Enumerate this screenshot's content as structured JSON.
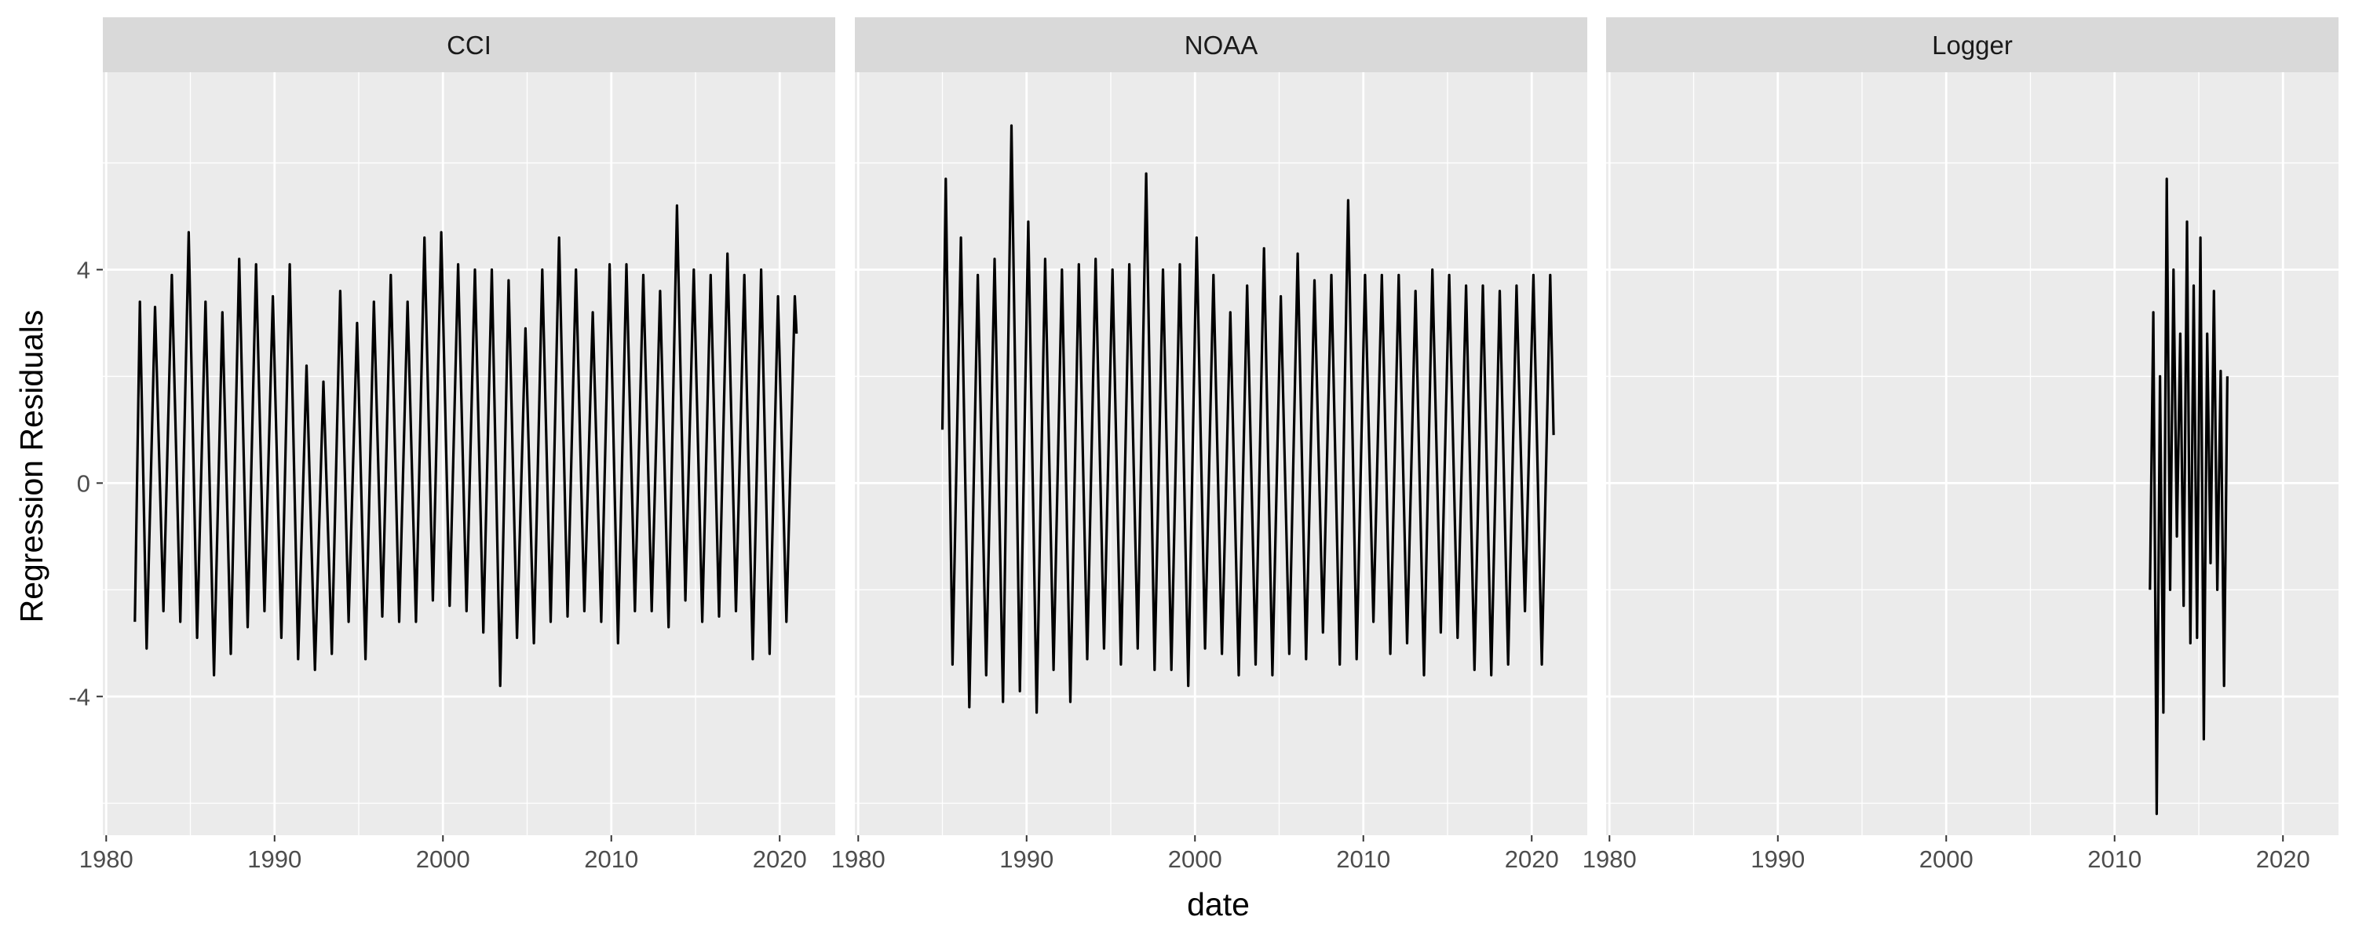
{
  "chart_data": {
    "type": "line",
    "facet_layout": "1 row x 3 columns, shared x and y axes",
    "xlabel": "date",
    "ylabel": "Regression Residuals",
    "xlim": [
      1979.8,
      2023.3
    ],
    "ylim": [
      -6.6,
      7.7
    ],
    "x_ticks": [
      1980,
      1990,
      2000,
      2010,
      2020
    ],
    "x_tick_labels": [
      "1980",
      "1990",
      "2000",
      "2010",
      "2020"
    ],
    "y_ticks": [
      -4,
      0,
      4
    ],
    "y_tick_labels": [
      "-4",
      "0",
      "4"
    ],
    "grid": true,
    "legend": "none",
    "colors": {
      "panel_bg": "#EBEBEB",
      "strip_bg": "#D9D9D9",
      "grid": "#FFFFFF",
      "line": "#000000"
    },
    "panels": [
      {
        "title": "CCI",
        "series": [
          {
            "x": [
              1981.7,
              1982.0,
              1982.4,
              1982.9,
              1983.4,
              1983.9,
              1984.4,
              1984.9,
              1985.4,
              1985.9,
              1986.4,
              1986.9,
              1987.4,
              1987.9,
              1988.4,
              1988.9,
              1989.4,
              1989.9,
              1990.4,
              1990.9,
              1991.4,
              1991.9,
              1992.4,
              1992.9,
              1993.4,
              1993.9,
              1994.4,
              1994.9,
              1995.4,
              1995.9,
              1996.4,
              1996.9,
              1997.4,
              1997.9,
              1998.4,
              1998.9,
              1999.4,
              1999.9,
              2000.4,
              2000.9,
              2001.4,
              2001.9,
              2002.4,
              2002.9,
              2003.4,
              2003.9,
              2004.4,
              2004.9,
              2005.4,
              2005.9,
              2006.4,
              2006.9,
              2007.4,
              2007.9,
              2008.4,
              2008.9,
              2009.4,
              2009.9,
              2010.4,
              2010.9,
              2011.4,
              2011.9,
              2012.4,
              2012.9,
              2013.4,
              2013.9,
              2014.4,
              2014.9,
              2015.4,
              2015.9,
              2016.4,
              2016.9,
              2017.4,
              2017.9,
              2018.4,
              2018.9,
              2019.4,
              2019.9,
              2020.4,
              2020.9,
              2021.0
            ],
            "y": [
              -2.6,
              3.4,
              -3.1,
              3.3,
              -2.4,
              3.9,
              -2.6,
              4.7,
              -2.9,
              3.4,
              -3.6,
              3.2,
              -3.2,
              4.2,
              -2.7,
              4.1,
              -2.4,
              3.5,
              -2.9,
              4.1,
              -3.3,
              2.2,
              -3.5,
              1.9,
              -3.2,
              3.6,
              -2.6,
              3.0,
              -3.3,
              3.4,
              -2.5,
              3.9,
              -2.6,
              3.4,
              -2.6,
              4.6,
              -2.2,
              4.7,
              -2.3,
              4.1,
              -2.4,
              4.0,
              -2.8,
              4.0,
              -3.8,
              3.8,
              -2.9,
              2.9,
              -3.0,
              4.0,
              -2.6,
              4.6,
              -2.5,
              4.0,
              -2.4,
              3.2,
              -2.6,
              4.1,
              -3.0,
              4.1,
              -2.4,
              3.9,
              -2.4,
              3.6,
              -2.7,
              5.2,
              -2.2,
              4.0,
              -2.6,
              3.9,
              -2.5,
              4.3,
              -2.4,
              3.9,
              -3.3,
              4.0,
              -3.2,
              3.5,
              -2.6,
              3.5,
              2.8
            ]
          }
        ]
      },
      {
        "title": "NOAA",
        "series": [
          {
            "x": [
              1985.0,
              1985.2,
              1985.6,
              1986.1,
              1986.6,
              1987.1,
              1987.6,
              1988.1,
              1988.6,
              1989.1,
              1989.6,
              1990.1,
              1990.6,
              1991.1,
              1991.6,
              1992.1,
              1992.6,
              1993.1,
              1993.6,
              1994.1,
              1994.6,
              1995.1,
              1995.6,
              1996.1,
              1996.6,
              1997.1,
              1997.6,
              1998.1,
              1998.6,
              1999.1,
              1999.6,
              2000.1,
              2000.6,
              2001.1,
              2001.6,
              2002.1,
              2002.6,
              2003.1,
              2003.6,
              2004.1,
              2004.6,
              2005.1,
              2005.6,
              2006.1,
              2006.6,
              2007.1,
              2007.6,
              2008.1,
              2008.6,
              2009.1,
              2009.6,
              2010.1,
              2010.6,
              2011.1,
              2011.6,
              2012.1,
              2012.6,
              2013.1,
              2013.6,
              2014.1,
              2014.6,
              2015.1,
              2015.6,
              2016.1,
              2016.6,
              2017.1,
              2017.6,
              2018.1,
              2018.6,
              2019.1,
              2019.6,
              2020.1,
              2020.6,
              2021.1,
              2021.3
            ],
            "y": [
              1.0,
              5.7,
              -3.4,
              4.6,
              -4.2,
              3.9,
              -3.6,
              4.2,
              -4.1,
              6.7,
              -3.9,
              4.9,
              -4.3,
              4.2,
              -3.5,
              4.0,
              -4.1,
              4.1,
              -3.3,
              4.2,
              -3.1,
              4.0,
              -3.4,
              4.1,
              -3.1,
              5.8,
              -3.5,
              4.0,
              -3.5,
              4.1,
              -3.8,
              4.6,
              -3.1,
              3.9,
              -3.2,
              3.2,
              -3.6,
              3.7,
              -3.4,
              4.4,
              -3.6,
              3.5,
              -3.2,
              4.3,
              -3.3,
              3.8,
              -2.8,
              3.9,
              -3.4,
              5.3,
              -3.3,
              3.9,
              -2.6,
              3.9,
              -3.2,
              3.9,
              -3.0,
              3.6,
              -3.6,
              4.0,
              -2.8,
              3.9,
              -2.9,
              3.7,
              -3.5,
              3.7,
              -3.6,
              3.6,
              -3.4,
              3.7,
              -2.4,
              3.9,
              -3.4,
              3.9,
              0.9
            ]
          }
        ]
      },
      {
        "title": "Logger",
        "series": [
          {
            "x": [
              2012.1,
              2012.3,
              2012.5,
              2012.7,
              2012.9,
              2013.1,
              2013.3,
              2013.5,
              2013.7,
              2013.9,
              2014.1,
              2014.3,
              2014.5,
              2014.7,
              2014.9,
              2015.1,
              2015.3,
              2015.5,
              2015.7,
              2015.9,
              2016.1,
              2016.3,
              2016.5,
              2016.7
            ],
            "y": [
              -2.0,
              3.2,
              -6.2,
              2.0,
              -4.3,
              5.7,
              -2.0,
              4.0,
              -1.0,
              2.8,
              -2.3,
              4.9,
              -3.0,
              3.7,
              -2.9,
              4.6,
              -4.8,
              2.8,
              -1.5,
              3.6,
              -2.0,
              2.1,
              -3.8,
              2.0
            ]
          }
        ]
      }
    ]
  }
}
